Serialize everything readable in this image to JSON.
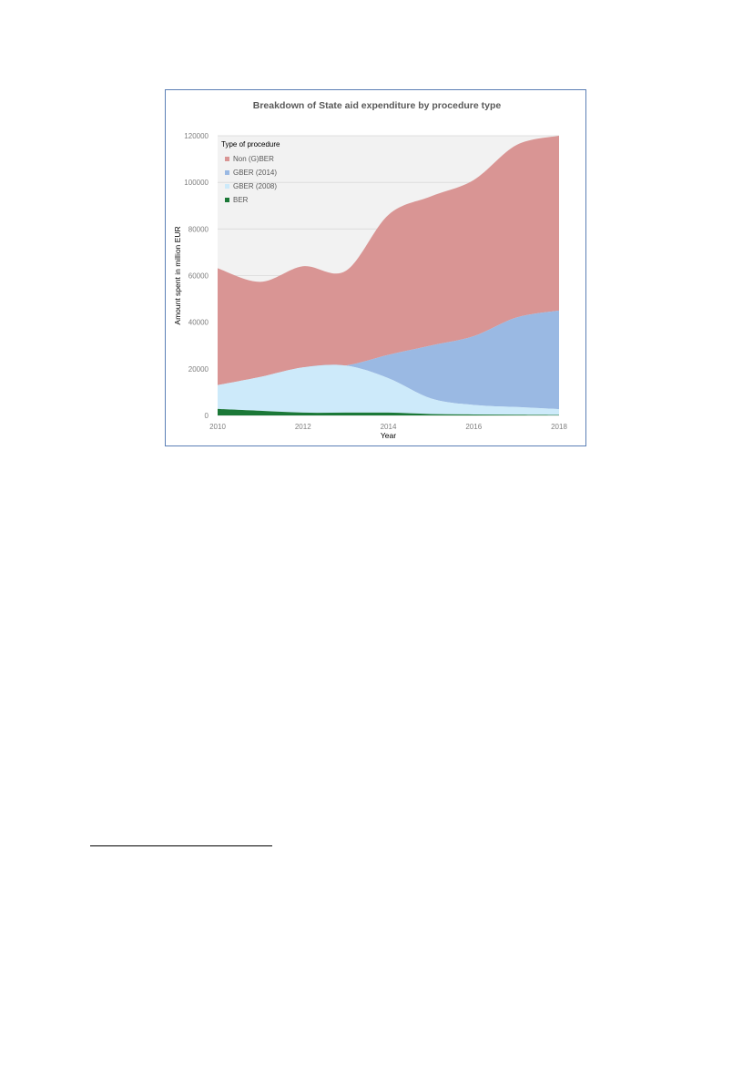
{
  "chart_data": {
    "type": "area",
    "stacked": true,
    "title": "Breakdown of State aid expenditure by procedure type",
    "xlabel": "Year",
    "ylabel": "Amount spent in million EUR",
    "x": [
      2010,
      2011,
      2012,
      2013,
      2014,
      2015,
      2016,
      2017,
      2018
    ],
    "x_ticks": [
      "2010",
      "2012",
      "2014",
      "2016",
      "2018"
    ],
    "y_ticks": [
      "0",
      "20000",
      "40000",
      "60000",
      "80000",
      "100000",
      "120000"
    ],
    "xlim": [
      2010,
      2018
    ],
    "ylim": [
      0,
      120000
    ],
    "legend_title": "Type of procedure",
    "legend_position": "top-left",
    "grid": "horizontal",
    "series": [
      {
        "name": "BER",
        "color": "#1b7837",
        "values": [
          2800,
          2000,
          1200,
          1200,
          1200,
          600,
          400,
          300,
          200
        ]
      },
      {
        "name": "GBER (2008)",
        "color": "#cdeafa",
        "values": [
          10200,
          14500,
          19400,
          20200,
          14800,
          6700,
          4100,
          3300,
          2500
        ]
      },
      {
        "name": "GBER (2014)",
        "color": "#9ab9e3",
        "values": [
          0,
          0,
          0,
          0,
          10000,
          22700,
          29500,
          38400,
          42300
        ]
      },
      {
        "name": "Non (G)BER",
        "color": "#d99594",
        "values": [
          50200,
          40800,
          43400,
          40600,
          60000,
          64000,
          67000,
          74000,
          75000
        ]
      }
    ],
    "plot_background": "#f2f2f2",
    "gridline_color": "#d9d9d9"
  }
}
